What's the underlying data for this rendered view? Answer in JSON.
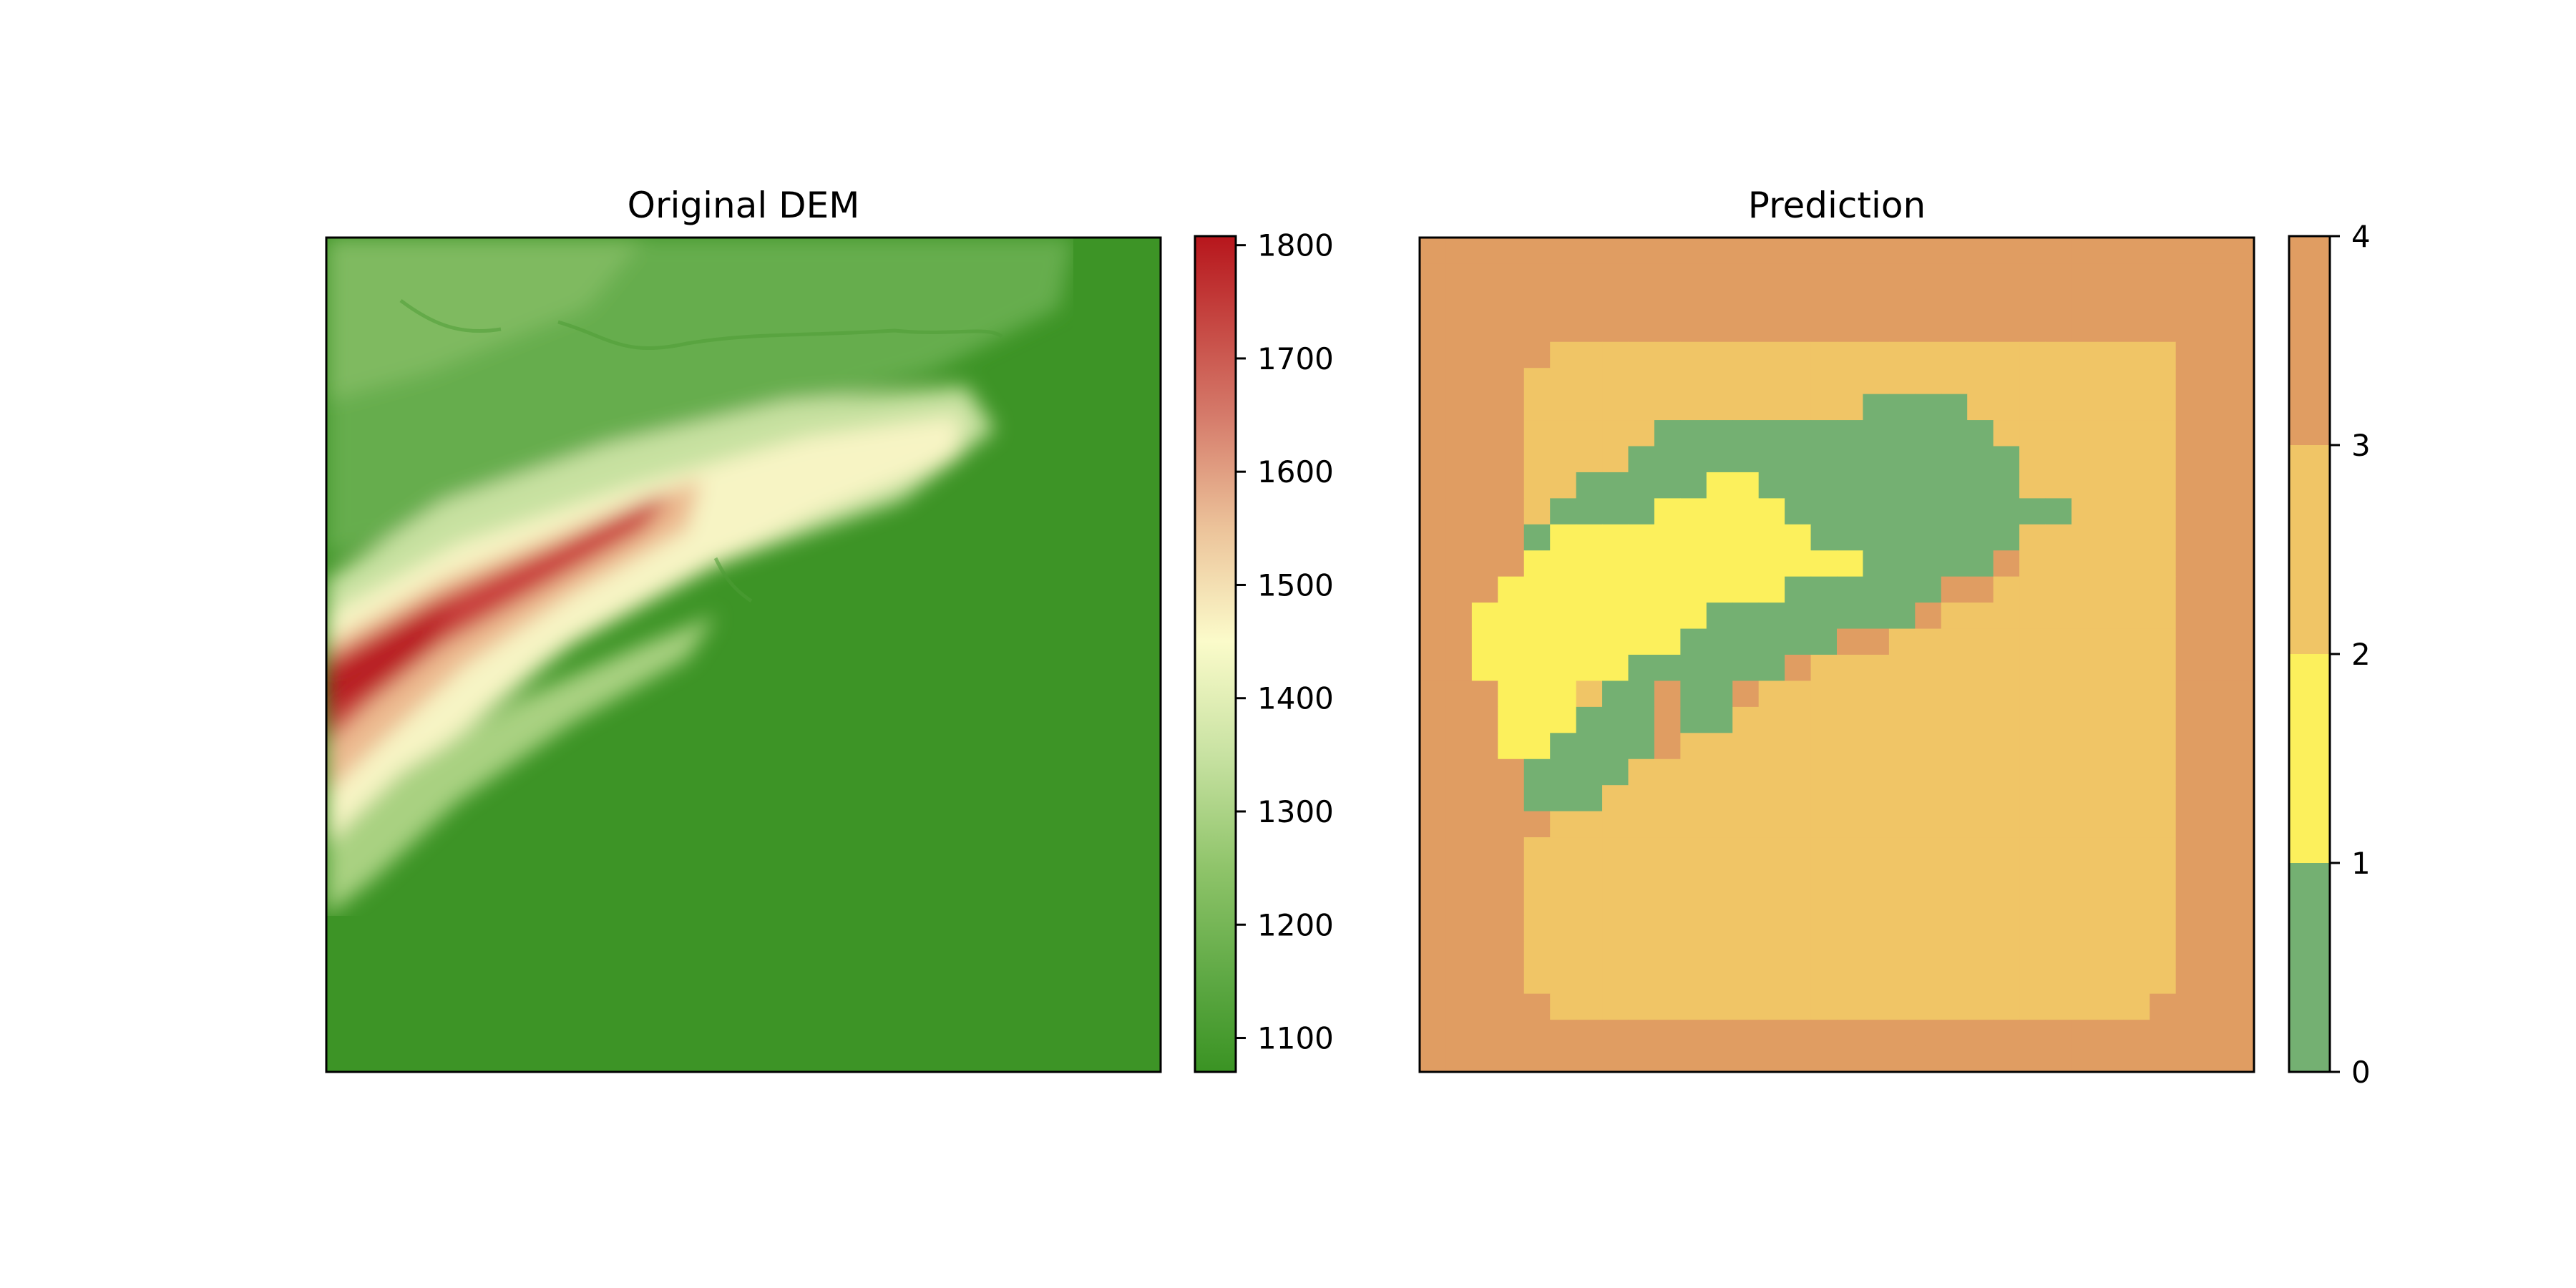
{
  "figure": {
    "background": "#ffffff"
  },
  "chart_data": [
    {
      "type": "heatmap",
      "title": "Original DEM",
      "xlabel": "",
      "ylabel": "",
      "axes_ticks": "none",
      "colorbar": {
        "orientation": "vertical",
        "ticks": [
          1100,
          1200,
          1300,
          1400,
          1500,
          1600,
          1700,
          1800
        ],
        "tick_labels": [
          "1100",
          "1200",
          "1300",
          "1400",
          "1500",
          "1600",
          "1700",
          "1800"
        ],
        "range": [
          1070,
          1808
        ],
        "colormap": [
          {
            "value": 1070,
            "color": "#3a9323"
          },
          {
            "value": 1150,
            "color": "#5da843"
          },
          {
            "value": 1250,
            "color": "#8fc46a"
          },
          {
            "value": 1350,
            "color": "#c8e2a2"
          },
          {
            "value": 1450,
            "color": "#fbfbca"
          },
          {
            "value": 1550,
            "color": "#ecc39a"
          },
          {
            "value": 1650,
            "color": "#d57a6a"
          },
          {
            "value": 1808,
            "color": "#b7161c"
          }
        ]
      },
      "description": "Elevation raster: flat lowland (~1090) in the lower-right, a ridge running from the left edge toward the upper-center peaking near 1750-1800, gentle plateau (~1200) in the upper-left."
    },
    {
      "type": "heatmap",
      "title": "Prediction",
      "xlabel": "",
      "ylabel": "",
      "axes_ticks": "none",
      "colorbar": {
        "orientation": "vertical",
        "ticks": [
          0,
          1,
          2,
          3,
          4
        ],
        "tick_labels": [
          "0",
          "1",
          "2",
          "3",
          "4"
        ],
        "range": [
          0,
          4
        ],
        "classes": [
          {
            "range": [
              0,
              1
            ],
            "color": "#74b072"
          },
          {
            "range": [
              1,
              2
            ],
            "color": "#fcf05c"
          },
          {
            "range": [
              2,
              3
            ],
            "color": "#f0c566"
          },
          {
            "range": [
              3,
              4
            ],
            "color": "#e09d62"
          }
        ]
      },
      "grid_size": 32,
      "description": "Classified map: class 3 border frame, class 2 interior, a class 0 band along the ridge with a class 1 core."
    }
  ]
}
